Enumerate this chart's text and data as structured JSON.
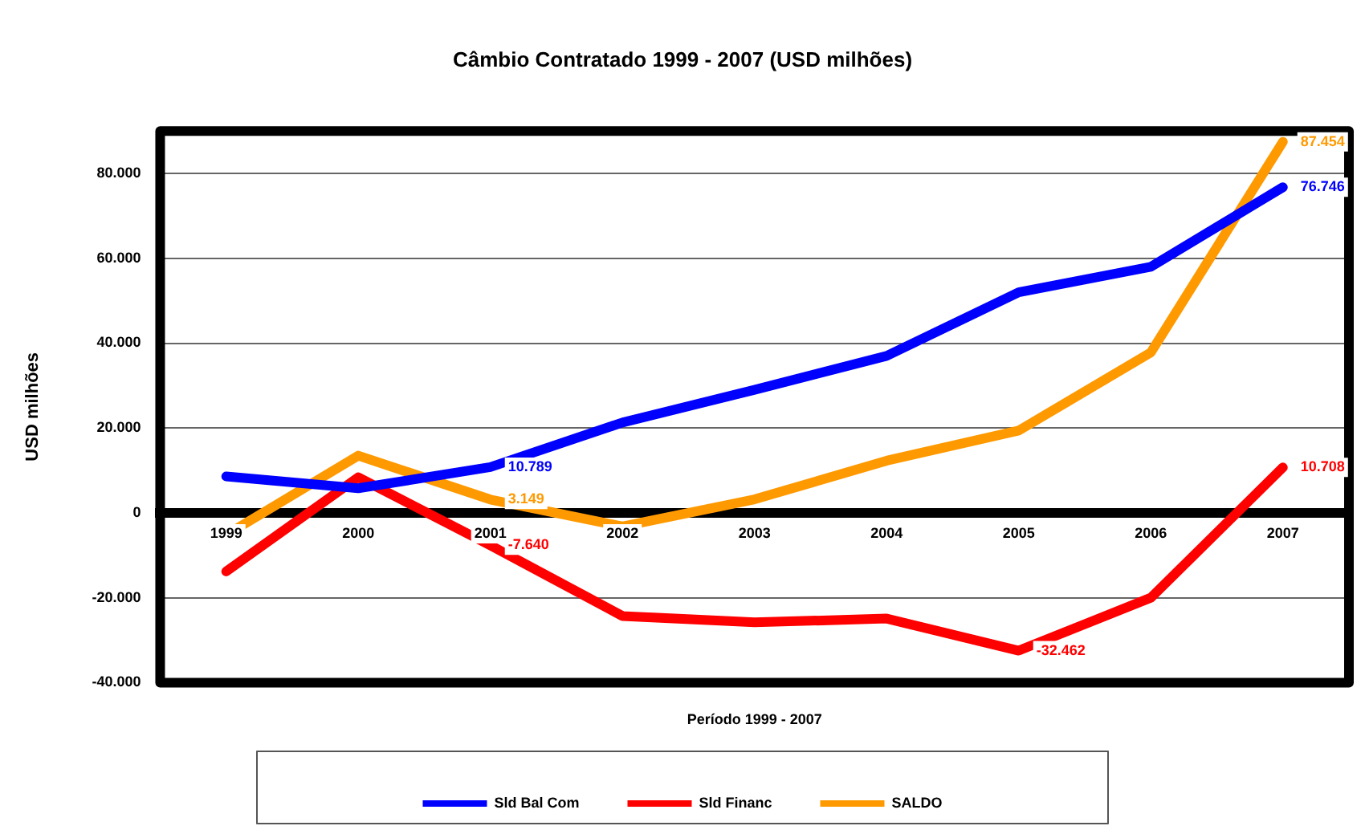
{
  "chart_data": {
    "type": "line",
    "title": "Câmbio Contratado 1999 - 2007 (USD milhões)",
    "xlabel": "Período 1999 - 2007",
    "ylabel": "USD milhões",
    "categories": [
      "1999",
      "2000",
      "2001",
      "2002",
      "2003",
      "2004",
      "2005",
      "2006",
      "2007"
    ],
    "series": [
      {
        "name": "Sld Bal Com",
        "color": "#0000ff",
        "values": [
          8600,
          5800,
          10789,
          21300,
          29000,
          37000,
          52000,
          58000,
          76746
        ],
        "value_labels": [
          null,
          null,
          "10.789",
          null,
          null,
          null,
          null,
          null,
          "76.746"
        ]
      },
      {
        "name": "Sld Financ",
        "color": "#ff0000",
        "values": [
          -13800,
          8400,
          -7640,
          -24300,
          -25800,
          -24900,
          -32462,
          -20000,
          10708
        ],
        "value_labels": [
          null,
          null,
          "-7.640",
          null,
          null,
          null,
          "-32.462",
          null,
          "10.708"
        ]
      },
      {
        "name": "SALDO",
        "color": "#ff9900",
        "values": [
          -5200,
          13500,
          3149,
          -3200,
          3200,
          12300,
          19400,
          37800,
          87454
        ],
        "value_labels": [
          null,
          null,
          "3.149",
          null,
          null,
          null,
          null,
          null,
          "87.454"
        ]
      }
    ],
    "ylim": [
      -40000,
      90000
    ],
    "yticks": [
      {
        "value": -40000,
        "label": "-40.000"
      },
      {
        "value": -20000,
        "label": "-20.000"
      },
      0,
      {
        "value": 20000,
        "label": "20.000"
      },
      {
        "value": 40000,
        "label": "40.000"
      },
      {
        "value": 60000,
        "label": "60.000"
      },
      {
        "value": 80000,
        "label": "80.000"
      }
    ],
    "grid": "y",
    "legend": "bottom",
    "marker": "none",
    "line_style": "solid"
  }
}
